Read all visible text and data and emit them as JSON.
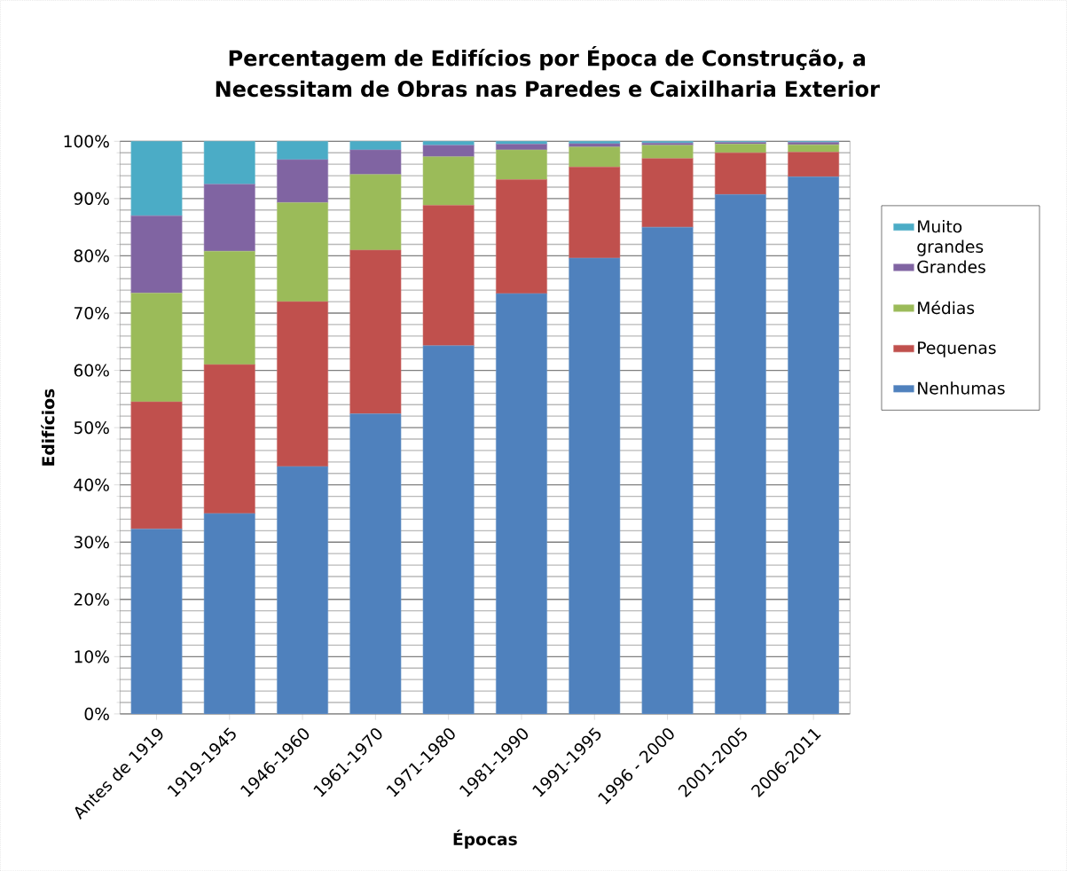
{
  "chart_data": {
    "type": "bar",
    "stacked": true,
    "title": "Percentagem de Edifícios por Época de Construção, a Necessitam de Obras nas Paredes e Caixilharia Exterior",
    "xlabel": "Épocas",
    "ylabel": "Edifícios",
    "categories": [
      "Antes de 1919",
      "1919-1945",
      "1946-1960",
      "1961-1970",
      "1971-1980",
      "1981-1990",
      "1991-1995",
      "1996 - 2000",
      "2001-2005",
      "2006-2011"
    ],
    "series": [
      {
        "name": "Nenhumas",
        "color": "#4f81bd",
        "values": [
          32.3,
          35.0,
          43.2,
          52.4,
          64.3,
          73.4,
          79.6,
          85.0,
          90.7,
          93.8
        ]
      },
      {
        "name": "Pequenas",
        "color": "#c0504d",
        "values": [
          22.2,
          26.0,
          28.8,
          28.6,
          24.5,
          19.9,
          15.9,
          12.0,
          7.3,
          4.3
        ]
      },
      {
        "name": "Médias",
        "color": "#9bbb59",
        "values": [
          19.0,
          19.8,
          17.3,
          13.2,
          8.5,
          5.2,
          3.5,
          2.3,
          1.5,
          1.3
        ]
      },
      {
        "name": "Grandes",
        "color": "#8064a2",
        "values": [
          13.5,
          11.7,
          7.5,
          4.3,
          2.0,
          1.0,
          0.6,
          0.4,
          0.3,
          0.4
        ]
      },
      {
        "name": "Muito grandes",
        "color": "#4bacc6",
        "values": [
          13.0,
          7.5,
          3.2,
          1.5,
          0.7,
          0.5,
          0.4,
          0.3,
          0.2,
          0.2
        ]
      }
    ],
    "ylim": [
      0,
      100
    ],
    "yticks": [
      {
        "value": 0,
        "label": "0%"
      },
      {
        "value": 10,
        "label": "10%"
      },
      {
        "value": 20,
        "label": "20%"
      },
      {
        "value": 30,
        "label": "30%"
      },
      {
        "value": 40,
        "label": "40%"
      },
      {
        "value": 50,
        "label": "50%"
      },
      {
        "value": 60,
        "label": "60%"
      },
      {
        "value": 70,
        "label": "70%"
      },
      {
        "value": 80,
        "label": "80%"
      },
      {
        "value": 90,
        "label": "90%"
      },
      {
        "value": 100,
        "label": "100%"
      }
    ],
    "grid": "y",
    "legend": "right"
  }
}
